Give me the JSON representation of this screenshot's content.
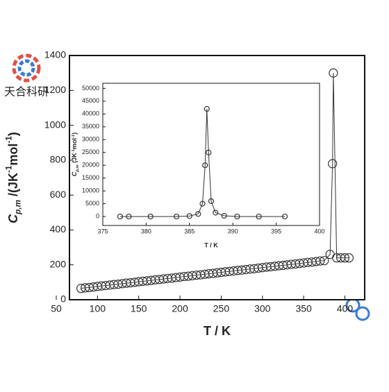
{
  "chart_data": [
    {
      "type": "scatter",
      "xlabel": "T / K",
      "ylabel": [
        "C",
        "p,m",
        " /(JK",
        "-1",
        "mol",
        "-1",
        ")"
      ],
      "xlim": [
        66,
        424
      ],
      "xticks": [
        50,
        100,
        150,
        200,
        250,
        300,
        350,
        400
      ],
      "ylim": [
        0,
        1400
      ],
      "yticks": [
        0,
        200,
        400,
        600,
        800,
        1000,
        1200,
        1400
      ],
      "x": [
        80,
        85,
        90,
        95,
        100,
        105,
        110,
        115,
        120,
        125,
        130,
        135,
        140,
        145,
        150,
        155,
        160,
        165,
        170,
        175,
        180,
        185,
        190,
        195,
        200,
        205,
        210,
        215,
        220,
        225,
        230,
        235,
        240,
        245,
        250,
        255,
        260,
        265,
        270,
        275,
        280,
        285,
        290,
        295,
        300,
        305,
        310,
        315,
        320,
        325,
        330,
        335,
        340,
        345,
        350,
        355,
        360,
        365,
        370,
        375,
        382,
        385,
        386,
        390,
        395,
        400,
        405
      ],
      "series": [
        {
          "name": "Cp,m",
          "color": "#333333",
          "values": [
            65,
            68,
            70,
            73,
            76,
            79,
            81,
            84,
            87,
            89,
            92,
            95,
            97,
            100,
            103,
            106,
            108,
            111,
            114,
            116,
            119,
            122,
            124,
            127,
            130,
            133,
            135,
            138,
            141,
            143,
            146,
            149,
            151,
            154,
            157,
            160,
            162,
            165,
            168,
            170,
            173,
            176,
            178,
            181,
            184,
            187,
            189,
            192,
            195,
            197,
            200,
            203,
            205,
            208,
            211,
            214,
            216,
            219,
            222,
            224,
            260,
            780,
            1300,
            240,
            240,
            240,
            240
          ]
        }
      ]
    },
    {
      "type": "scatter",
      "xlabel": "T / K",
      "ylabel": [
        "C",
        "p,m",
        " (JK",
        "-1",
        "mol",
        "-1",
        ")"
      ],
      "xlim": [
        375,
        400
      ],
      "xticks": [
        375,
        380,
        385,
        390,
        395,
        400
      ],
      "ylim": [
        -3500,
        52000
      ],
      "yticks": [
        0,
        5000,
        10000,
        15000,
        20000,
        25000,
        30000,
        35000,
        40000,
        45000,
        50000
      ],
      "x": [
        377,
        378,
        380.5,
        383.5,
        385,
        386,
        386.5,
        386.8,
        387,
        387.2,
        387.5,
        388,
        389,
        390.5,
        393,
        396
      ],
      "series": [
        {
          "name": "Cp,m",
          "color": "#333333",
          "values": [
            0,
            0,
            0,
            0,
            200,
            1000,
            5000,
            20000,
            42000,
            25000,
            6000,
            1500,
            300,
            0,
            0,
            0
          ]
        }
      ]
    }
  ],
  "watermark": "天合科研"
}
